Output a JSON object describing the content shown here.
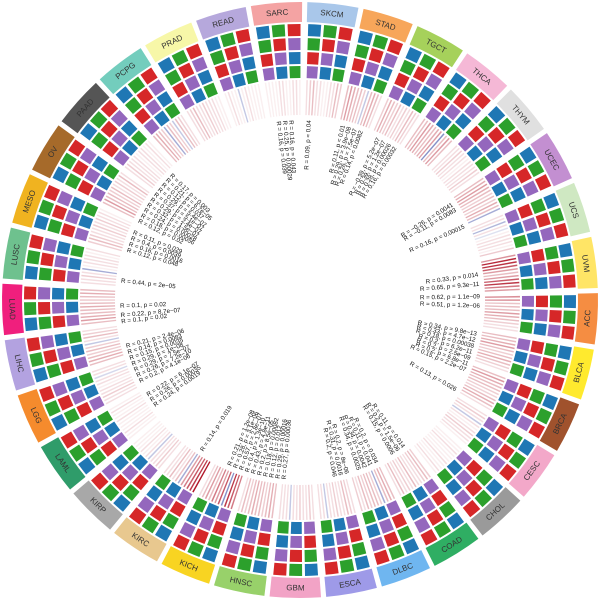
{
  "chart_data": {
    "type": "circos",
    "track_colors": [
      "#1f77b4",
      "#2ca02c",
      "#d62728",
      "#9467bd"
    ],
    "heat_colors": {
      "positive": "#b2182b",
      "negative": "#2c3e9f"
    },
    "segments": [
      {
        "name": "SARC",
        "color": "#f4a3a3"
      },
      {
        "name": "SKCM",
        "color": "#a9c7ea"
      },
      {
        "name": "STAD",
        "color": "#f7a65a"
      },
      {
        "name": "TGCT",
        "color": "#a6d15b"
      },
      {
        "name": "THCA",
        "color": "#f5b8d6"
      },
      {
        "name": "THYM",
        "color": "#e0e0e0"
      },
      {
        "name": "UCEC",
        "color": "#c38fd1"
      },
      {
        "name": "UCS",
        "color": "#cfe8c2"
      },
      {
        "name": "UVM",
        "color": "#ffe566"
      },
      {
        "name": "ACC",
        "color": "#f58d42"
      },
      {
        "name": "BLCA",
        "color": "#ffea2e"
      },
      {
        "name": "BRCA",
        "color": "#a0522d"
      },
      {
        "name": "CESC",
        "color": "#f3a8c9"
      },
      {
        "name": "CHOL",
        "color": "#9a9a9a"
      },
      {
        "name": "COAD",
        "color": "#2fae63"
      },
      {
        "name": "DLBC",
        "color": "#6fb6f0"
      },
      {
        "name": "ESCA",
        "color": "#9e9ae8"
      },
      {
        "name": "GBM",
        "color": "#f2a3c6"
      },
      {
        "name": "HNSC",
        "color": "#98d16a"
      },
      {
        "name": "KICH",
        "color": "#f8d422"
      },
      {
        "name": "KIRC",
        "color": "#e8c88f"
      },
      {
        "name": "KIRP",
        "color": "#a8a8a8"
      },
      {
        "name": "LAML",
        "color": "#2f9c6a"
      },
      {
        "name": "LGG",
        "color": "#f58b2d"
      },
      {
        "name": "LIHC",
        "color": "#b3a2e0"
      },
      {
        "name": "LUAD",
        "color": "#f01f7d"
      },
      {
        "name": "LUSC",
        "color": "#6ec18e"
      },
      {
        "name": "MESO",
        "color": "#f0b320"
      },
      {
        "name": "OV",
        "color": "#a66a2a"
      },
      {
        "name": "PAAD",
        "color": "#555555"
      },
      {
        "name": "PCPG",
        "color": "#73cdbd"
      },
      {
        "name": "PRAD",
        "color": "#f7f7a8"
      },
      {
        "name": "READ",
        "color": "#b6a8dc"
      }
    ],
    "heat_values": [
      [
        0.05,
        0.05,
        0.05,
        0.05,
        0.1,
        0.1,
        0.05,
        0.05,
        0.1,
        0.1,
        0.05
      ],
      [
        0.1,
        0.15,
        0.2,
        0.1,
        0.1,
        0.05,
        0.05,
        0.1,
        0.1,
        0.2,
        0.15
      ],
      [
        0.2,
        0.3,
        0.25,
        0.2,
        0.2,
        0.15,
        -0.2,
        0.2,
        0.25,
        0.2,
        0.1
      ],
      [
        0.15,
        0.25,
        0.2,
        0.15,
        0.2,
        0.1,
        0.15,
        0.1,
        0.2,
        0.15,
        0.1
      ],
      [
        0.2,
        0.2,
        0.3,
        0.25,
        0.2,
        0.25,
        0.3,
        -0.4,
        0.2,
        0.3,
        0.2
      ],
      [
        0.1,
        0.1,
        0.15,
        0.1,
        0.1,
        0.05,
        0.1,
        0.1,
        0.1,
        0.15,
        0.1
      ],
      [
        0.2,
        0.25,
        0.3,
        0.25,
        0.2,
        0.15,
        0.2,
        0.15,
        0.25,
        0.2,
        -0.3
      ],
      [
        0.1,
        0.1,
        -0.26,
        0.1,
        -0.11,
        0.05,
        0.1,
        0.1,
        0.1,
        0.05,
        0.16
      ],
      [
        0.33,
        0.65,
        0.62,
        0.51,
        0.3,
        0.2,
        0.3,
        0.5,
        0.6,
        0.4,
        0.3
      ],
      [
        0.34,
        0.33,
        0.18,
        0.2,
        0.2,
        0.3,
        0.25,
        0.2,
        0.15,
        0.1,
        0.1
      ],
      [
        0.2,
        0.2,
        0.25,
        0.3,
        0.2,
        0.15,
        0.2,
        0.25,
        0.2,
        0.15,
        0.1
      ],
      [
        0.2,
        0.3,
        0.25,
        0.2,
        0.2,
        0.15,
        0.13,
        0.2,
        0.25,
        0.2,
        0.1
      ],
      [
        0.1,
        0.15,
        0.1,
        -0.2,
        0.1,
        0.05,
        0.1,
        0.15,
        0.1,
        0.1,
        0.05
      ],
      [
        0.05,
        0.05,
        0.1,
        0.05,
        0.05,
        0.05,
        0.1,
        0.05,
        0.05,
        0.1,
        0.05
      ],
      [
        0.15,
        0.2,
        0.15,
        0.1,
        0.11,
        0.2,
        0.1,
        0.15,
        0.1,
        0.2,
        0.1
      ],
      [
        0.2,
        0.25,
        0.2,
        -0.3,
        0.15,
        0.2,
        0.2,
        0.15,
        0.2,
        0.1,
        0.15
      ],
      [
        0.1,
        0.15,
        0.2,
        0.1,
        0.1,
        0.15,
        0.1,
        0.1,
        -0.2,
        0.1,
        0.1
      ],
      [
        0.1,
        0.15,
        0.1,
        0.1,
        0.15,
        0.1,
        0.1,
        -0.2,
        0.1,
        0.1,
        0.1
      ],
      [
        0.2,
        0.25,
        0.2,
        0.15,
        0.2,
        0.2,
        0.25,
        0.2,
        0.15,
        0.2,
        0.1
      ],
      [
        0.4,
        0.5,
        0.6,
        -0.4,
        0.5,
        0.3,
        0.4,
        0.2,
        0.3,
        0.2,
        0.1
      ],
      [
        0.7,
        0.6,
        0.5,
        0.4,
        0.3,
        -0.3,
        0.2,
        0.1,
        0.2,
        0.1,
        0.1
      ],
      [
        0.1,
        0.15,
        0.1,
        0.1,
        -0.2,
        0.1,
        0.05,
        0.1,
        0.05,
        0.05,
        0.05
      ],
      [
        0.05,
        0.05,
        0.1,
        0.05,
        0.05,
        0.05,
        0.1,
        0.05,
        0.05,
        0.1,
        0.05
      ],
      [
        0.1,
        0.1,
        0.15,
        0.1,
        0.1,
        0.05,
        0.1,
        0.1,
        -0.14,
        0.1,
        0.1
      ],
      [
        0.2,
        0.25,
        0.2,
        0.15,
        0.2,
        0.15,
        -0.2,
        0.1,
        0.2,
        0.15,
        0.1
      ],
      [
        0.2,
        0.3,
        0.25,
        0.2,
        0.2,
        0.25,
        0.2,
        0.15,
        0.2,
        0.25,
        0.2
      ],
      [
        0.1,
        0.1,
        0.15,
        0.1,
        -0.3,
        0.05,
        0.1,
        0.1,
        0.1,
        0.05,
        0.1
      ],
      [
        0.15,
        0.2,
        0.15,
        0.1,
        0.1,
        0.15,
        0.1,
        0.15,
        0.1,
        0.1,
        0.05
      ],
      [
        0.2,
        0.3,
        0.2,
        0.2,
        0.15,
        0.2,
        0.1,
        0.15,
        0.1,
        0.2,
        0.1
      ],
      [
        0.1,
        0.15,
        0.1,
        0.1,
        0.1,
        0.05,
        0.1,
        0.1,
        0.05,
        0.1,
        0.05
      ],
      [
        0.2,
        0.25,
        0.2,
        0.15,
        -0.3,
        0.2,
        0.15,
        -0.2,
        0.2,
        0.15,
        0.1
      ],
      [
        0.1,
        0.15,
        0.2,
        0.1,
        0.1,
        0.15,
        0.1,
        0.1,
        0.1,
        0.05,
        0.05
      ],
      [
        0.05,
        0.1,
        0.05,
        0.05,
        -0.2,
        0.05,
        0.1,
        0.05,
        0.05,
        0.05,
        0.05
      ]
    ],
    "stat_labels": [
      {
        "deg": -7,
        "text": "R = 0.16, p = 0.039"
      },
      {
        "deg": -5,
        "text": "R = 0.25, p = 0.00029"
      },
      {
        "deg": -3,
        "text": "R = 0.16, p = 0.043"
      },
      {
        "deg": 3,
        "text": "R = 0.09, p = 0.04"
      },
      {
        "deg": 14,
        "text": "R = 0.11, p = 0.01"
      },
      {
        "deg": 16,
        "text": "R = 0.29, p = 3.9e−08"
      },
      {
        "deg": 18,
        "text": "R = 0.26, p = 7.5e−07"
      },
      {
        "deg": 20,
        "text": "R = 0.14, p = 0.0082"
      },
      {
        "deg": 26,
        "text": "R = −0.39, p = 5.2e−07"
      },
      {
        "deg": 28,
        "text": "R = 0.39, p = 1.2e−07"
      },
      {
        "deg": 30,
        "text": "R = 0.28, p = 0.00026"
      },
      {
        "deg": 32,
        "text": "R = 0.16, p = 0.00032"
      },
      {
        "deg": 58,
        "text": "R = −0.26, p = 0.0041"
      },
      {
        "deg": 60,
        "text": "R = −0.11, p = 0.0083"
      },
      {
        "deg": 66,
        "text": "R = 0.16, p = 0.00015"
      },
      {
        "deg": 82,
        "text": "R = 0.33, p = 0.014"
      },
      {
        "deg": 85,
        "text": "R = 0.65, p = 9.3e−11"
      },
      {
        "deg": 89,
        "text": "R = 0.62, p = 1.1e−09"
      },
      {
        "deg": 92,
        "text": "R = 0.51, p = 1.2e−06"
      },
      {
        "deg": 101,
        "text": "R = 0.34, p = 9.8e−13"
      },
      {
        "deg": 103,
        "text": "R = 0.33, p = 4.7e−12"
      },
      {
        "deg": 105,
        "text": "R = 0.18, p = 0.00038"
      },
      {
        "deg": 107,
        "text": "R = 0.2, p = 6.2e−11"
      },
      {
        "deg": 109,
        "text": "R = 0.2, p = 2.5e−09"
      },
      {
        "deg": 111,
        "text": "R = 0.2, p = 6.8e−11"
      },
      {
        "deg": 113,
        "text": "R = 0.15, p = 2.2e−07"
      },
      {
        "deg": 120,
        "text": "R = 0.13, p = 0.026"
      },
      {
        "deg": 145,
        "text": "R = 0.11, p = 0.014"
      },
      {
        "deg": 147,
        "text": "R = 0.2, p = 1.5e−06"
      },
      {
        "deg": 149,
        "text": "R = 0.15, p = 0.0006"
      },
      {
        "deg": 155,
        "text": "R = 0.2, p = 0.034"
      },
      {
        "deg": 157,
        "text": "R = 0.11, p = 0.041"
      },
      {
        "deg": 159,
        "text": "R = 0.34, p = 0.0042"
      },
      {
        "deg": 161,
        "text": "R = 0.34, p = 0.0025"
      },
      {
        "deg": 165,
        "text": "R = 0.2, p = 8e−06"
      },
      {
        "deg": 167,
        "text": "R = 0.31, p = 0.0016"
      },
      {
        "deg": 169,
        "text": "R = 0.2, p = 0.046"
      },
      {
        "deg": 185,
        "text": "R = 0.27, p = 0.00036"
      },
      {
        "deg": 187,
        "text": "R = 0.29, p = 0.00016"
      },
      {
        "deg": 189,
        "text": "R = 0.12, p = 0.012"
      },
      {
        "deg": 191,
        "text": "R = 0.18, p = 0.00082"
      },
      {
        "deg": 193,
        "text": "R = 0.2, p = 8.5e−05"
      },
      {
        "deg": 195,
        "text": "R = 0.43, p = 4.8e−11"
      },
      {
        "deg": 197,
        "text": "R = 0.4, p = 1.3e−10"
      },
      {
        "deg": 199,
        "text": "R = 0.57, p = 2.8e−07"
      },
      {
        "deg": 201,
        "text": "R = 0.28, p = 3.1e−06"
      },
      {
        "deg": 203,
        "text": "R = 0.21, p = 1.2e−08"
      },
      {
        "deg": 213,
        "text": "R = 0.14, p = 0.019"
      },
      {
        "deg": 234,
        "text": "R = 0.24, p = 0.0019"
      },
      {
        "deg": 236,
        "text": "R = 0.26, p = 0.00035"
      },
      {
        "deg": 238,
        "text": "R = 0.22, p = 6.1e−07"
      },
      {
        "deg": 243,
        "text": "R = 0.2, p = 4.1e−06"
      },
      {
        "deg": 245,
        "text": "R = 0.26, p = 7.2e−10"
      },
      {
        "deg": 247,
        "text": "R = 0.29, p = 7.5e−07"
      },
      {
        "deg": 249,
        "text": "R = 0.29, p = 1e−08"
      },
      {
        "deg": 251,
        "text": "R = 0.15, p = 0.0035"
      },
      {
        "deg": 253,
        "text": "R = 0.14, p = 0.0083"
      },
      {
        "deg": 255,
        "text": "R = 0.21, p = 2.4e−06"
      },
      {
        "deg": 263,
        "text": "R = 0.1, p = 0.02"
      },
      {
        "deg": 265,
        "text": "R = 0.22, p = 8.7e−07"
      },
      {
        "deg": 268,
        "text": "R = 0.1, p = 0.02"
      },
      {
        "deg": 276,
        "text": "R = 0.44, p = 2e−05"
      },
      {
        "deg": 286,
        "text": "R = 0.12, p = 0.048"
      },
      {
        "deg": 288,
        "text": "R = 0.16, p = 0.0016"
      },
      {
        "deg": 290,
        "text": "R = 0.4, p = 0.0039"
      },
      {
        "deg": 292,
        "text": "R = 0.11, p = 0.029"
      },
      {
        "deg": 296,
        "text": "R = 0.12, p = 0.02"
      },
      {
        "deg": 298,
        "text": "R = 0.18, p = 0.00056"
      },
      {
        "deg": 300,
        "text": "R = 0.24, p = 0.00028"
      },
      {
        "deg": 302,
        "text": "R = 0.32, p = 1.5e−07"
      },
      {
        "deg": 304,
        "text": "R = 0.29, p = 2.4e−07"
      },
      {
        "deg": 306,
        "text": "R = 0.37, p = 5.1e−07"
      },
      {
        "deg": 308,
        "text": "R = 0.29, p = 5.4e−07"
      },
      {
        "deg": 310,
        "text": "R = 0.12, p = 0.037"
      },
      {
        "deg": 312,
        "text": "R = 0.21, p = 6.7e−05"
      },
      {
        "deg": 314,
        "text": "R = 0.17, p = 0.003"
      }
    ]
  }
}
